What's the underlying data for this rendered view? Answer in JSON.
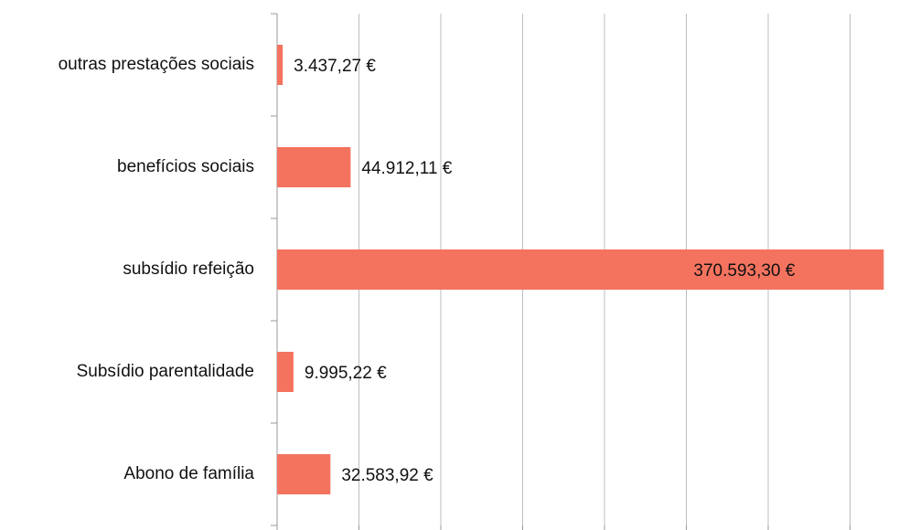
{
  "chart_data": {
    "type": "bar",
    "orientation": "horizontal",
    "categories": [
      "outras prestações sociais",
      "benefícios sociais",
      "subsídio refeição",
      "Subsídio parentalidade",
      "Abono de família"
    ],
    "values": [
      3437.27,
      44912.11,
      370593.3,
      9995.22,
      32583.92
    ],
    "value_labels": [
      "3.437,27 €",
      "44.912,11 €",
      "370.593,30 €",
      "9.995,22 €",
      "32.583,92 €"
    ],
    "color": "#f4735f",
    "xlim": [
      0,
      400000
    ],
    "xticks": [
      0,
      50000,
      100000,
      150000,
      200000,
      250000,
      300000,
      350000
    ],
    "grid": true
  }
}
